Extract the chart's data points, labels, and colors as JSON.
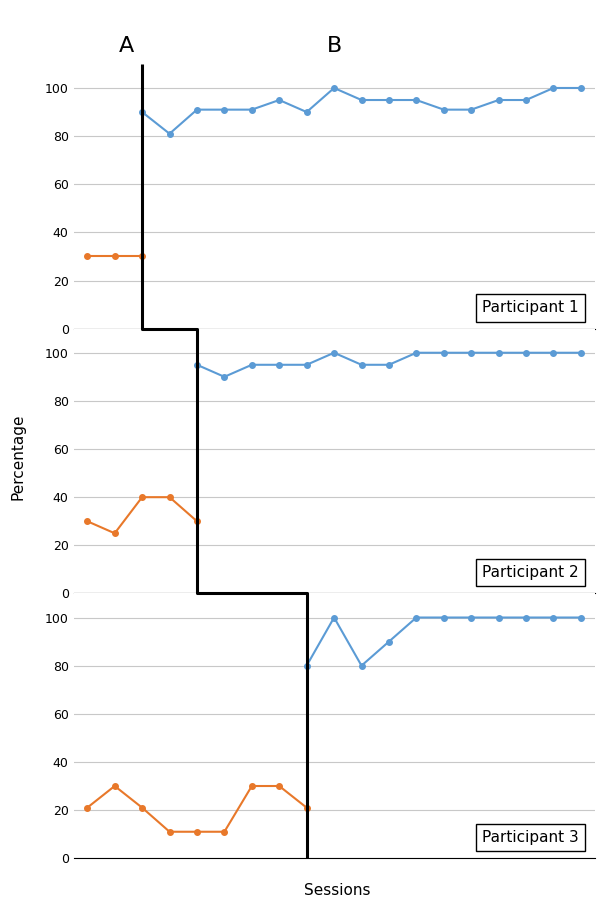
{
  "panel1": {
    "label": "Participant 1",
    "baseline_x": [
      1,
      2,
      3
    ],
    "baseline_y": [
      30,
      30,
      30
    ],
    "intervention_x": [
      3,
      4,
      5,
      6,
      7,
      8,
      9,
      10,
      11,
      12,
      13,
      14,
      15,
      16,
      17,
      18,
      19
    ],
    "intervention_y": [
      90,
      81,
      91,
      91,
      91,
      95,
      90,
      100,
      95,
      95,
      95,
      91,
      91,
      95,
      95,
      100,
      100
    ],
    "phase_line_x": 3,
    "baseline_label": "A",
    "intervention_label": "B"
  },
  "panel2": {
    "label": "Participant 2",
    "baseline_x": [
      1,
      2,
      3,
      4,
      5
    ],
    "baseline_y": [
      30,
      25,
      40,
      40,
      30
    ],
    "intervention_x": [
      5,
      6,
      7,
      8,
      9,
      10,
      11,
      12,
      13,
      14,
      15,
      16,
      17,
      18,
      19
    ],
    "intervention_y": [
      95,
      90,
      95,
      95,
      95,
      100,
      95,
      95,
      100,
      100,
      100,
      100,
      100,
      100,
      100
    ],
    "phase_line_x": 5
  },
  "panel3": {
    "label": "Participant 3",
    "baseline_x": [
      1,
      2,
      3,
      4,
      5,
      6,
      7,
      8,
      9
    ],
    "baseline_y": [
      21,
      30,
      21,
      11,
      11,
      11,
      30,
      30,
      21
    ],
    "intervention_x": [
      9,
      10,
      11,
      12,
      13,
      14,
      15,
      16,
      17,
      18,
      19
    ],
    "intervention_y": [
      80,
      100,
      80,
      90,
      100,
      100,
      100,
      100,
      100,
      100,
      100
    ],
    "phase_line_x": 9
  },
  "orange_color": "#E8782A",
  "blue_color": "#5B9BD5",
  "phase_line_color": "#000000",
  "ylabel": "Percentage",
  "xlabel": "Sessions",
  "ylim": [
    0,
    110
  ],
  "yticks": [
    0,
    20,
    40,
    60,
    80,
    100
  ],
  "figsize": [
    6.13,
    9.13
  ],
  "dpi": 100,
  "x_total": 19,
  "xlim": [
    0.5,
    19.5
  ]
}
